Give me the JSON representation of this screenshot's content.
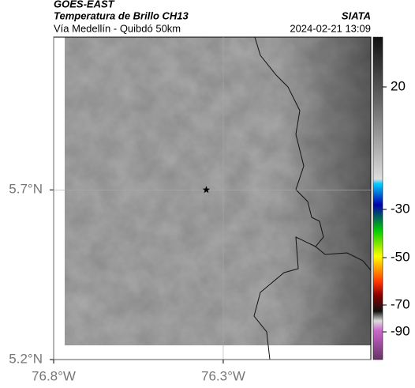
{
  "header": {
    "source": "GOES-EAST",
    "product": "Temperatura de Brillo CH13",
    "agency": "SIATA",
    "region": "Vía Medellín - Quibdó 50km",
    "timestamp": "2024-02-21 13:09"
  },
  "map": {
    "lat_range": [
      5.2,
      6.15
    ],
    "lon_range": [
      -76.8,
      -75.865
    ],
    "lat_ticks": [
      {
        "value": 5.7,
        "label": "5.7°N"
      },
      {
        "value": 5.2,
        "label": "5.2°N"
      }
    ],
    "lon_ticks": [
      {
        "value": -76.8,
        "label": "76.8°W"
      },
      {
        "value": -76.3,
        "label": "76.3°W"
      }
    ],
    "marker": {
      "lon": -76.35,
      "lat": 5.7
    }
  },
  "colorbar": {
    "ticks": [
      20,
      -30,
      -50,
      -70,
      -90
    ]
  }
}
